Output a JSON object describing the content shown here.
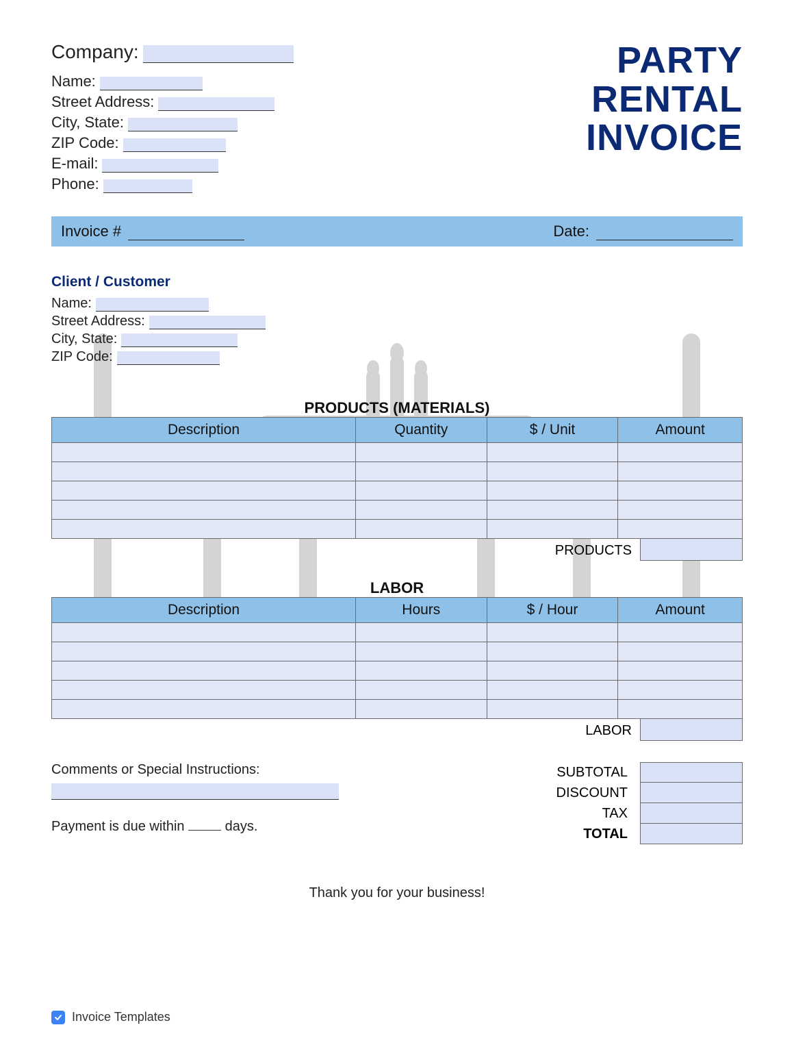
{
  "colors": {
    "title": "#0b2a73",
    "bar_bg": "#8fc1e8",
    "cell_bg": "#e3e8f8",
    "fill_bg": "#d9e2f7",
    "border": "#6b6b6b",
    "text": "#222222"
  },
  "header": {
    "title_line1": "PARTY",
    "title_line2": "RENTAL",
    "title_line3": "INVOICE"
  },
  "company": {
    "company_label": "Company:",
    "name_label": "Name:",
    "street_label": "Street Address:",
    "city_label": "City, State:",
    "zip_label": "ZIP Code:",
    "email_label": "E-mail:",
    "phone_label": "Phone:"
  },
  "invoice_bar": {
    "invoice_label": "Invoice #",
    "date_label": "Date:"
  },
  "client": {
    "section_title": "Client / Customer",
    "name_label": "Name:",
    "street_label": "Street Address:",
    "city_label": "City, State:",
    "zip_label": "ZIP Code:"
  },
  "products": {
    "title": "PRODUCTS (MATERIALS)",
    "columns": [
      "Description",
      "Quantity",
      "$ / Unit",
      "Amount"
    ],
    "row_count": 5,
    "subtotal_label": "PRODUCTS"
  },
  "labor": {
    "title": "LABOR",
    "columns": [
      "Description",
      "Hours",
      "$ / Hour",
      "Amount"
    ],
    "row_count": 5,
    "subtotal_label": "LABOR"
  },
  "comments": {
    "label": "Comments or Special Instructions:",
    "payment_prefix": "Payment is due within",
    "payment_suffix": "days."
  },
  "totals": {
    "subtotal": "SUBTOTAL",
    "discount": "DISCOUNT",
    "tax": "TAX",
    "total": "TOTAL"
  },
  "thanks": "Thank you for your business!",
  "footer": {
    "brand": "Invoice Templates"
  }
}
